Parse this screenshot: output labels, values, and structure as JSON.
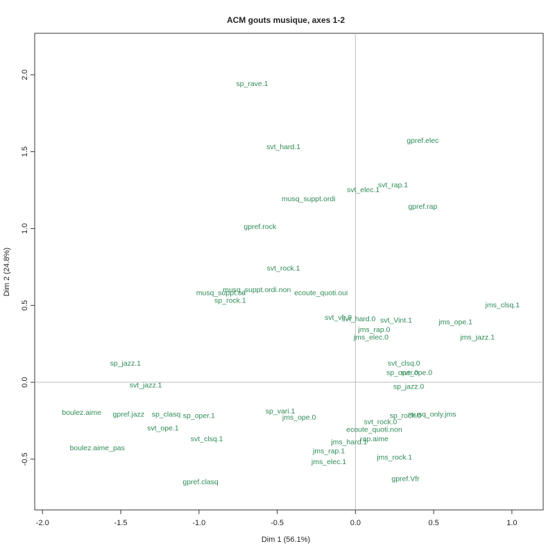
{
  "chart_data": {
    "type": "scatter",
    "title": "ACM gouts musique, axes 1-2",
    "xlabel": "Dim 1 (56.1%)",
    "ylabel": "Dim 2 (24.8%)",
    "xlim": [
      -2.05,
      1.2
    ],
    "ylim": [
      -0.83,
      2.27
    ],
    "xticks": [
      {
        "value": -2,
        "label": "-2.0"
      },
      {
        "value": -1.5,
        "label": "-1.5"
      },
      {
        "value": -1,
        "label": "-1.0"
      },
      -0.5,
      {
        "value": 0,
        "label": "0.0"
      },
      0.5,
      {
        "value": 1,
        "label": "1.0"
      }
    ],
    "yticks": [
      -0.5,
      {
        "value": 0,
        "label": "0.0"
      },
      0.5,
      {
        "value": 1,
        "label": "1.0"
      },
      1.5,
      {
        "value": 2,
        "label": "2.0"
      }
    ],
    "zero_lines": true,
    "color": "#2e8b57",
    "labels": [
      "sp_rave.1",
      "svt_hard.1",
      "gpref.elec",
      "svt_rap.1",
      "svt_elec.1",
      "musq_suppt.ordi",
      "gpref.rap",
      "gpref.rock",
      "svt_rock.1",
      "musq_suppt.cd",
      "musq_suppt.ordi.non",
      "ecoute_quoti.oui",
      "sp_rock.1",
      "jms_clsq.1",
      "svt_vfr.0",
      "svt_hard.0",
      "svt_Vint.1",
      "jms_ope.1",
      "jms_rap.0",
      "jms_elec.0",
      "jms_jazz.1",
      "sp_jazz.1",
      "svt_clsq.0",
      "sp_oper.0",
      "svt_ope.0",
      "sp_jazz.0",
      "svt_jazz.1",
      "boulez.aime",
      "gpref.jazz",
      "sp_clasq",
      "sp_oper.1",
      "sp_vari.1",
      "jms_ope.0",
      "musq_only.jms",
      "sp_rock.0",
      "svt_rock.0",
      "ecoute_quoti.non",
      "svt_ope.1",
      "jms_hard.1",
      "rap.aime",
      "svt_clsq.1",
      "boulez.aime_pas",
      "jms_rap.1",
      "jms_rock.1",
      "jms_elec.1",
      "gpref.Vfr",
      "gpref.clasq"
    ],
    "x": [
      -0.66,
      -0.46,
      0.43,
      0.24,
      0.05,
      -0.3,
      0.43,
      -0.61,
      -0.46,
      -0.86,
      -0.63,
      -0.22,
      -0.8,
      0.94,
      -0.11,
      0.02,
      0.26,
      0.64,
      0.12,
      0.1,
      0.78,
      -1.47,
      0.31,
      0.3,
      0.39,
      0.34,
      -1.34,
      -1.75,
      -1.45,
      -1.21,
      -1.0,
      -0.48,
      -0.36,
      0.49,
      0.32,
      0.16,
      0.12,
      -1.23,
      -0.04,
      0.12,
      -0.95,
      -1.65,
      -0.17,
      0.25,
      -0.17,
      0.32,
      -0.99
    ],
    "values": [
      1.94,
      1.53,
      1.57,
      1.28,
      1.25,
      1.19,
      1.14,
      1.01,
      0.74,
      0.58,
      0.6,
      0.58,
      0.53,
      0.5,
      0.42,
      0.41,
      0.4,
      0.39,
      0.34,
      0.29,
      0.29,
      0.12,
      0.12,
      0.06,
      0.06,
      -0.03,
      -0.02,
      -0.2,
      -0.21,
      -0.21,
      -0.22,
      -0.19,
      -0.23,
      -0.21,
      -0.22,
      -0.26,
      -0.31,
      -0.3,
      -0.39,
      -0.37,
      -0.37,
      -0.43,
      -0.45,
      -0.49,
      -0.52,
      -0.63,
      -0.65
    ]
  }
}
